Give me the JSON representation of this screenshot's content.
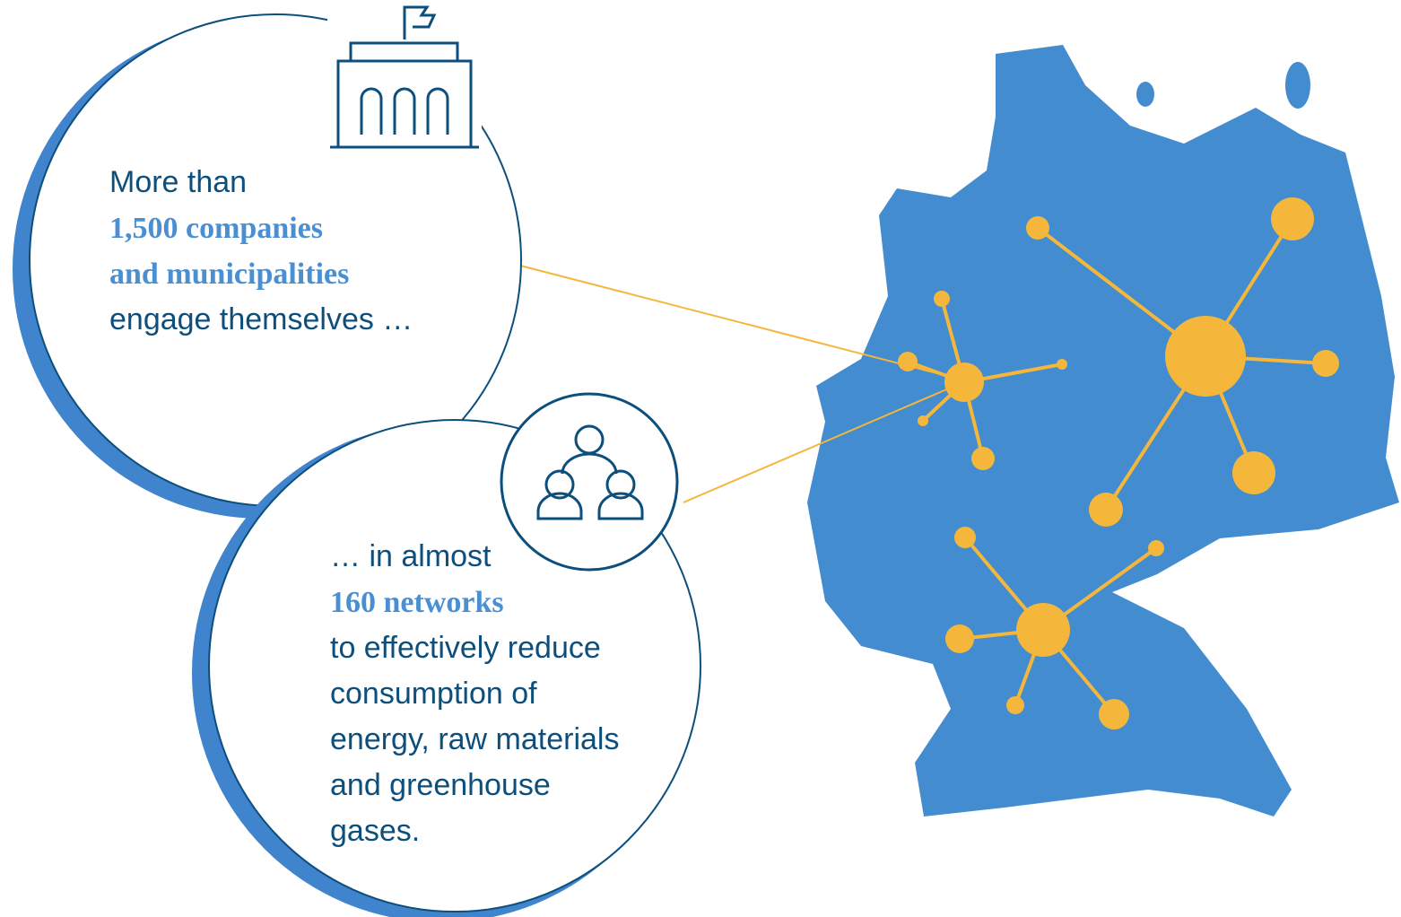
{
  "first": {
    "intro": "More than",
    "highlight": [
      "1,500 companies",
      "and municipalities"
    ],
    "outro": [
      "engage themselves …"
    ]
  },
  "second": {
    "intro": "… in almost",
    "highlight": [
      "160 networks"
    ],
    "outro": [
      "to effectively reduce",
      "consumption of",
      "energy, raw materials",
      "and greenhouse",
      "gases."
    ]
  }
}
